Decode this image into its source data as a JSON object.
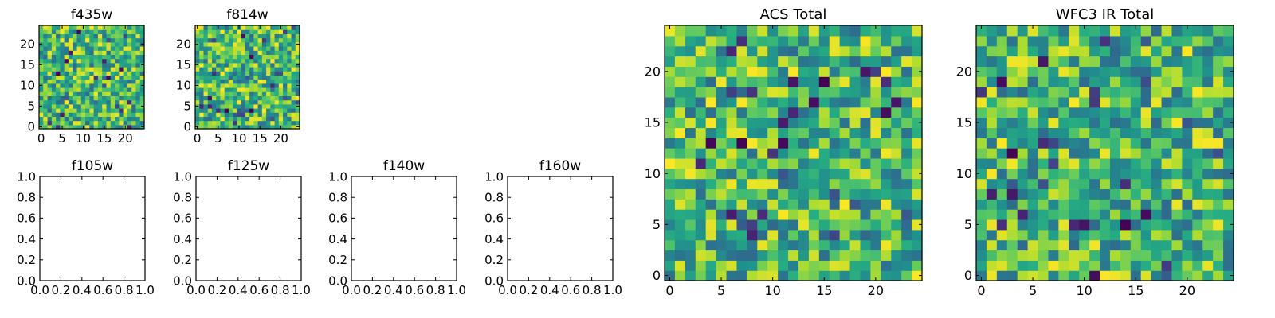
{
  "chart_data": [
    {
      "type": "heatmap",
      "title": "f435w",
      "colormap": "viridis",
      "grid_size": 25,
      "x_ticks": [
        0,
        5,
        10,
        15,
        20
      ],
      "y_ticks": [
        0,
        5,
        10,
        15,
        20
      ],
      "xlim": [
        -0.5,
        24.5
      ],
      "ylim": [
        -0.5,
        24.5
      ],
      "values": "25x25 pixel intensity map (per-pixel values not legible)"
    },
    {
      "type": "heatmap",
      "title": "f814w",
      "colormap": "viridis",
      "grid_size": 25,
      "x_ticks": [
        0,
        5,
        10,
        15,
        20
      ],
      "y_ticks": [
        0,
        5,
        10,
        15,
        20
      ],
      "xlim": [
        -0.5,
        24.5
      ],
      "ylim": [
        -0.5,
        24.5
      ],
      "values": "25x25 pixel intensity map (per-pixel values not legible)"
    },
    {
      "type": "heatmap",
      "title": "f105w",
      "empty": true,
      "xlim": [
        0,
        1
      ],
      "ylim": [
        0,
        1
      ],
      "x_ticks": [
        "0.0",
        "0.2",
        "0.4",
        "0.6",
        "0.8",
        "1.0"
      ],
      "y_ticks": [
        "0.0",
        "0.2",
        "0.4",
        "0.6",
        "0.8",
        "1.0"
      ]
    },
    {
      "type": "heatmap",
      "title": "f125w",
      "empty": true,
      "xlim": [
        0,
        1
      ],
      "ylim": [
        0,
        1
      ],
      "x_ticks": [
        "0.0",
        "0.2",
        "0.4",
        "0.6",
        "0.8",
        "1.0"
      ],
      "y_ticks": [
        "0.0",
        "0.2",
        "0.4",
        "0.6",
        "0.8",
        "1.0"
      ]
    },
    {
      "type": "heatmap",
      "title": "f140w",
      "empty": true,
      "xlim": [
        0,
        1
      ],
      "ylim": [
        0,
        1
      ],
      "x_ticks": [
        "0.0",
        "0.2",
        "0.4",
        "0.6",
        "0.8",
        "1.0"
      ],
      "y_ticks": [
        "0.0",
        "0.2",
        "0.4",
        "0.6",
        "0.8",
        "1.0"
      ]
    },
    {
      "type": "heatmap",
      "title": "f160w",
      "empty": true,
      "xlim": [
        0,
        1
      ],
      "ylim": [
        0,
        1
      ],
      "x_ticks": [
        "0.0",
        "0.2",
        "0.4",
        "0.6",
        "0.8",
        "1.0"
      ],
      "y_ticks": [
        "0.0",
        "0.2",
        "0.4",
        "0.6",
        "0.8",
        "1.0"
      ]
    },
    {
      "type": "heatmap",
      "title": "ACS Total",
      "colormap": "viridis",
      "grid_size": 25,
      "x_ticks": [
        0,
        5,
        10,
        15,
        20
      ],
      "y_ticks": [
        0,
        5,
        10,
        15,
        20
      ],
      "xlim": [
        -0.5,
        24.5
      ],
      "ylim": [
        -0.5,
        24.5
      ],
      "values": "25x25 pixel intensity map (per-pixel values not legible)"
    },
    {
      "type": "heatmap",
      "title": "WFC3 IR Total",
      "colormap": "viridis",
      "grid_size": 25,
      "x_ticks": [
        0,
        5,
        10,
        15,
        20
      ],
      "y_ticks": [
        0,
        5,
        10,
        15,
        20
      ],
      "xlim": [
        -0.5,
        24.5
      ],
      "ylim": [
        -0.5,
        24.5
      ],
      "values": "25x25 pixel intensity map (per-pixel values not legible)"
    }
  ]
}
